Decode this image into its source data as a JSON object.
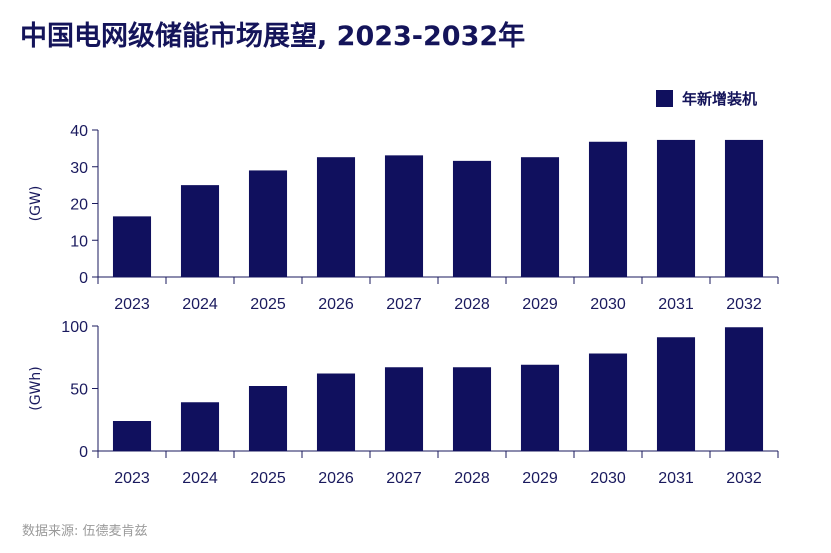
{
  "title": "中国电网级储能市场展望, 2023-2032年",
  "source": "数据来源: 伍德麦肯兹",
  "colors": {
    "bar": "#10105e",
    "axis": "#1a1a5e",
    "text": "#14145a",
    "source": "#9a9a9a"
  },
  "chart_data": [
    {
      "type": "bar",
      "categories": [
        "2023",
        "2024",
        "2025",
        "2026",
        "2027",
        "2028",
        "2029",
        "2030",
        "2031",
        "2032"
      ],
      "series": [
        {
          "name": "年新增装机",
          "values": [
            16.5,
            25,
            29,
            32.6,
            33.1,
            31.6,
            32.6,
            36.8,
            37.3,
            37.3
          ]
        }
      ],
      "ylabel": "(GW)",
      "ylim": [
        0,
        40
      ],
      "yticks": [
        0,
        10,
        20,
        30,
        40
      ],
      "legend": "top-right",
      "grid": false
    },
    {
      "type": "bar",
      "categories": [
        "2023",
        "2024",
        "2025",
        "2026",
        "2027",
        "2028",
        "2029",
        "2030",
        "2031",
        "2032"
      ],
      "series": [
        {
          "values": [
            24,
            39,
            52,
            62,
            67,
            67,
            69,
            78,
            91,
            99
          ]
        }
      ],
      "ylabel": "(GWh)",
      "ylim": [
        0,
        100
      ],
      "yticks": [
        0,
        50,
        100
      ],
      "grid": false
    }
  ]
}
